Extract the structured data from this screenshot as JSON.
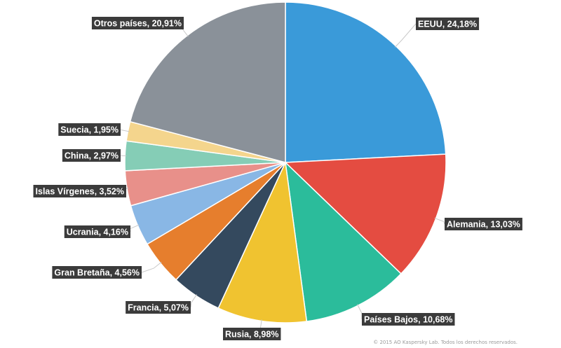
{
  "chart_data": {
    "type": "pie",
    "title": "",
    "slices": [
      {
        "label": "EEUU",
        "value": 24.18,
        "text": "EEUU, 24,18%",
        "color": "#3a9ad9"
      },
      {
        "label": "Alemania",
        "value": 13.03,
        "text": "Alemania, 13,03%",
        "color": "#e44c41"
      },
      {
        "label": "Países Bajos",
        "value": 10.68,
        "text": "Países Bajos, 10,68%",
        "color": "#2bbc9b"
      },
      {
        "label": "Rusia",
        "value": 8.98,
        "text": "Rusia, 8,98%",
        "color": "#f0c330"
      },
      {
        "label": "Francia",
        "value": 5.07,
        "text": "Francia, 5,07%",
        "color": "#34495e"
      },
      {
        "label": "Gran Bretaña",
        "value": 4.56,
        "text": "Gran Bretaña, 4,56%",
        "color": "#e67e2d"
      },
      {
        "label": "Ucrania",
        "value": 4.16,
        "text": "Ucrania, 4,16%",
        "color": "#89b7e5"
      },
      {
        "label": "Islas Vírgenes",
        "value": 3.52,
        "text": "Islas Vírgenes, 3,52%",
        "color": "#e8908a"
      },
      {
        "label": "China",
        "value": 2.97,
        "text": "China, 2,97%",
        "color": "#85cdb6"
      },
      {
        "label": "Suecia",
        "value": 1.95,
        "text": "Suecia, 1,95%",
        "color": "#f4d58d"
      },
      {
        "label": "Otros países",
        "value": 20.91,
        "text": "Otros países, 20,91%",
        "color": "#8a9199"
      }
    ],
    "legend": "none"
  },
  "footer": {
    "copyright": "© 2015 AO Kaspersky Lab. Todos los derechos reservados."
  }
}
